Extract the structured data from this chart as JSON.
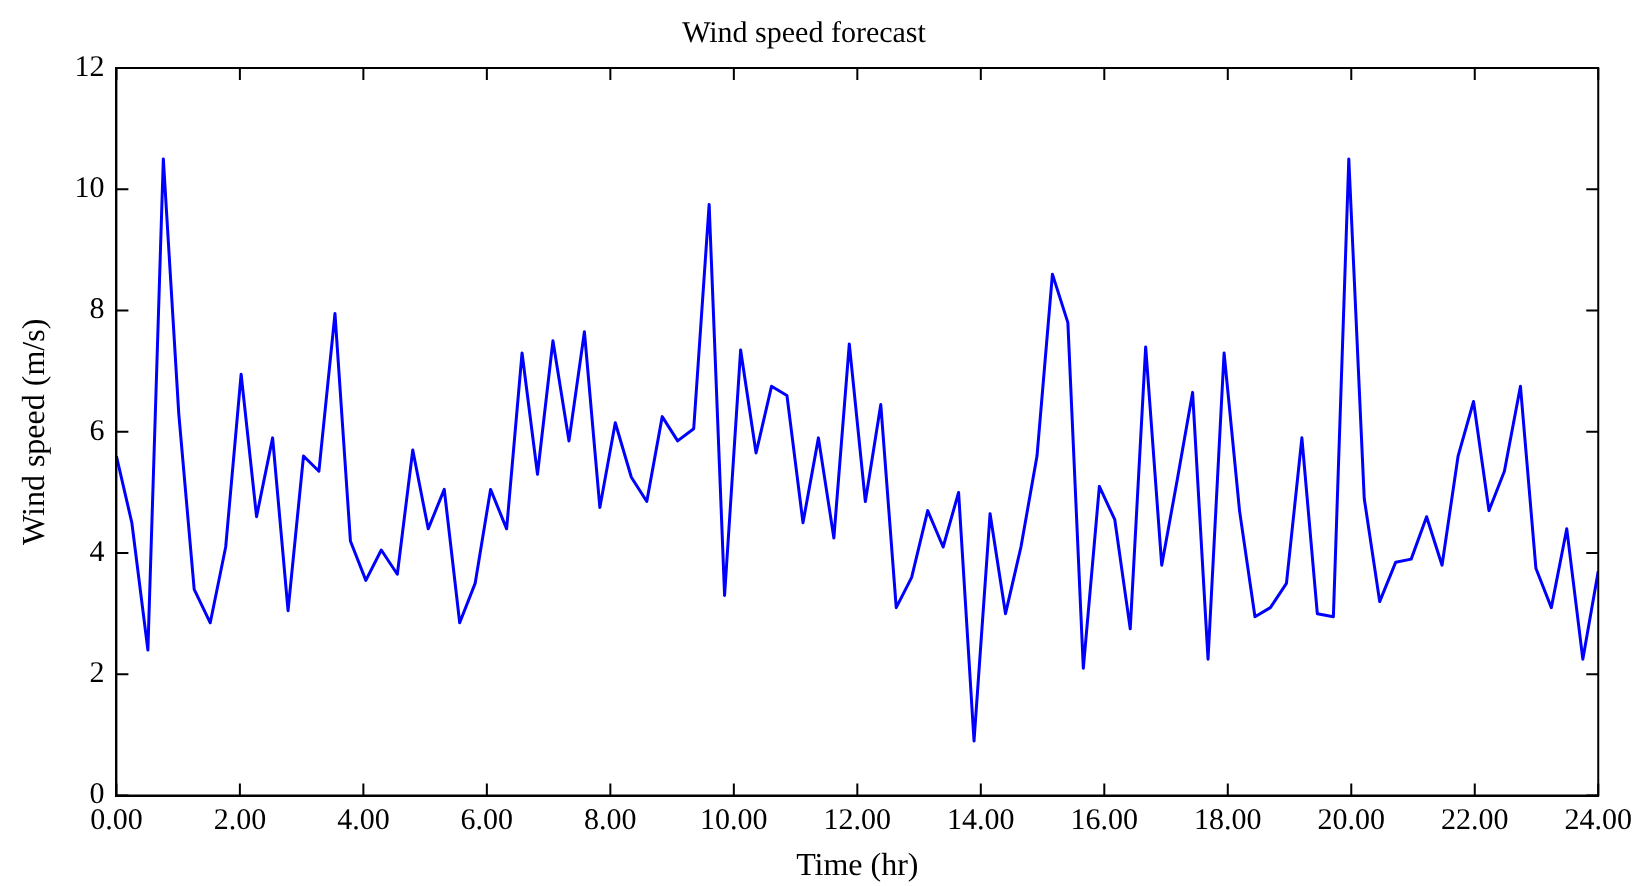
{
  "chart_data": {
    "type": "line",
    "title": "Wind speed forecast",
    "xlabel": "Time (hr)",
    "ylabel": "Wind speed (m/s)",
    "x": [
      0,
      0.25,
      0.51,
      0.76,
      1.01,
      1.26,
      1.52,
      1.77,
      2.02,
      2.27,
      2.53,
      2.78,
      3.03,
      3.28,
      3.54,
      3.79,
      4.04,
      4.29,
      4.55,
      4.8,
      5.05,
      5.31,
      5.56,
      5.81,
      6.06,
      6.32,
      6.57,
      6.82,
      7.07,
      7.33,
      7.58,
      7.83,
      8.08,
      8.34,
      8.59,
      8.84,
      9.09,
      9.35,
      9.6,
      9.85,
      10.11,
      10.36,
      10.61,
      10.86,
      11.12,
      11.37,
      11.62,
      11.87,
      12.13,
      12.38,
      12.63,
      12.88,
      13.14,
      13.39,
      13.64,
      13.89,
      14.15,
      14.4,
      14.65,
      14.91,
      15.16,
      15.41,
      15.66,
      15.92,
      16.17,
      16.42,
      16.67,
      16.93,
      17.18,
      17.43,
      17.68,
      17.94,
      18.19,
      18.44,
      18.69,
      18.95,
      19.2,
      19.45,
      19.71,
      19.96,
      20.21,
      20.46,
      20.72,
      20.97,
      21.22,
      21.47,
      21.73,
      21.98,
      22.23,
      22.48,
      22.74,
      22.99,
      23.24,
      23.49,
      23.75,
      24.0
    ],
    "series": [
      {
        "color": "#0000ff",
        "values": [
          5.6,
          4.5,
          2.4,
          10.5,
          6.3,
          3.4,
          2.85,
          4.1,
          6.95,
          4.6,
          5.9,
          3.05,
          5.6,
          5.35,
          7.95,
          4.2,
          3.55,
          4.05,
          3.65,
          5.7,
          4.4,
          5.05,
          2.85,
          3.5,
          5.05,
          4.4,
          7.3,
          5.3,
          7.5,
          5.85,
          7.65,
          4.75,
          6.15,
          5.25,
          4.85,
          6.25,
          5.85,
          6.05,
          9.75,
          3.3,
          7.35,
          5.65,
          6.75,
          6.6,
          4.5,
          5.9,
          4.25,
          7.45,
          4.85,
          6.45,
          3.1,
          3.6,
          4.7,
          4.1,
          5.0,
          0.9,
          4.65,
          3.0,
          4.1,
          5.6,
          8.6,
          7.8,
          2.1,
          5.1,
          4.55,
          2.75,
          7.4,
          3.8,
          5.2,
          6.65,
          2.25,
          7.3,
          4.7,
          2.95,
          3.1,
          3.5,
          5.9,
          3.0,
          2.95,
          10.5,
          4.9,
          3.2,
          3.85,
          3.9,
          4.6,
          3.8,
          5.6,
          6.5,
          4.7,
          5.35,
          6.75,
          3.75,
          3.1,
          4.4,
          2.25,
          3.7
        ]
      }
    ],
    "xlim": [
      0,
      24
    ],
    "xticks": [
      {
        "value": 0,
        "label": "0.00"
      },
      {
        "value": 2,
        "label": "2.00"
      },
      {
        "value": 4,
        "label": "4.00"
      },
      {
        "value": 6,
        "label": "6.00"
      },
      {
        "value": 8,
        "label": "8.00"
      },
      {
        "value": 10,
        "label": "10.00"
      },
      {
        "value": 12,
        "label": "12.00"
      },
      {
        "value": 14,
        "label": "14.00"
      },
      {
        "value": 16,
        "label": "16.00"
      },
      {
        "value": 18,
        "label": "18.00"
      },
      {
        "value": 20,
        "label": "20.00"
      },
      {
        "value": 22,
        "label": "22.00"
      },
      {
        "value": 24,
        "label": "24.00"
      }
    ],
    "ylim": [
      0,
      12
    ],
    "yticks": [
      0,
      2,
      4,
      6,
      8,
      10,
      12
    ],
    "grid": false,
    "legend": false,
    "marker": "none",
    "line_style": "solid"
  }
}
